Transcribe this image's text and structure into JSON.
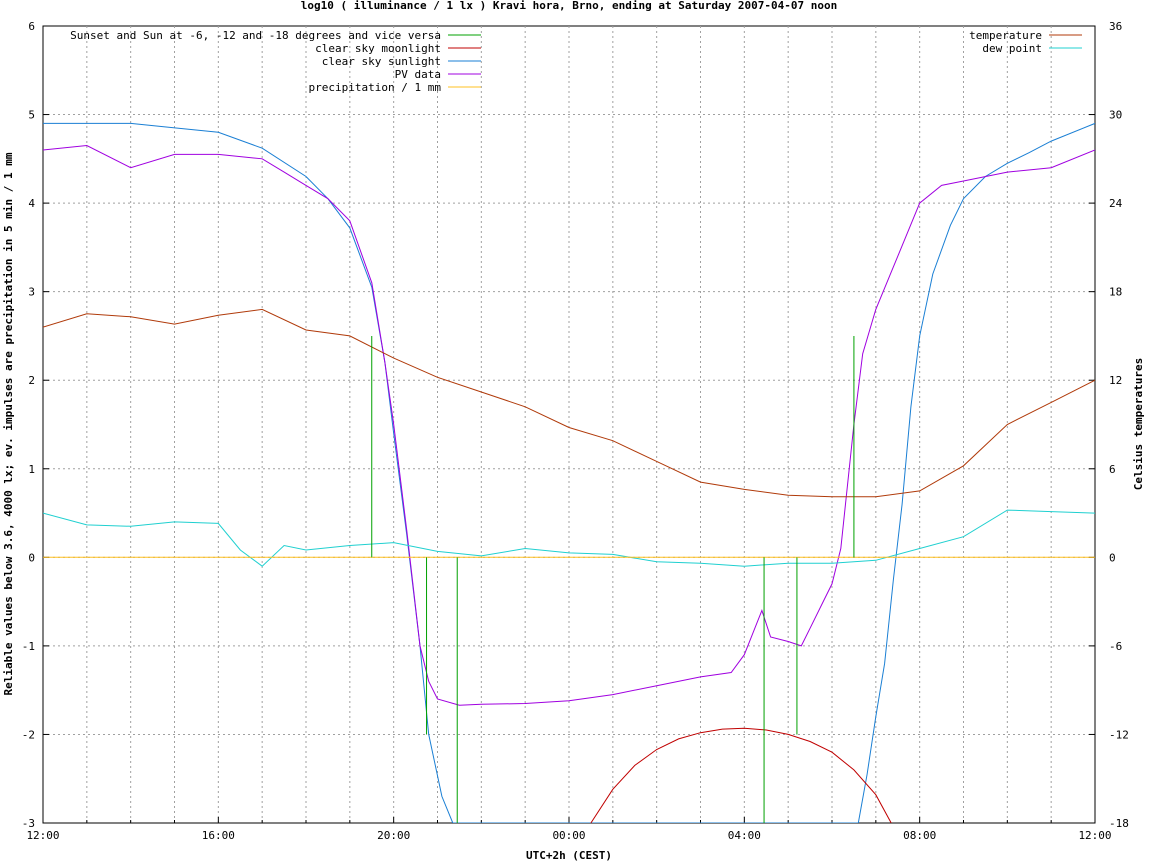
{
  "chart_data": {
    "type": "line",
    "title": "log10 ( illuminance / 1 lx ) Kravi hora, Brno, ending at Saturday 2007-04-07 noon",
    "xlabel": "UTC+2h (CEST)",
    "ylabel": "Reliable values below 3.6, 4000 lx; ev. impulses are precipitation in 5 min / 1 mm",
    "y2label": "Celsius temperatures",
    "xlim": [
      12,
      36
    ],
    "ylim": [
      -3,
      6
    ],
    "y2lim": [
      -18,
      36
    ],
    "x_ticks": [
      {
        "x": 12,
        "label": "12:00"
      },
      {
        "x": 16,
        "label": "16:00"
      },
      {
        "x": 20,
        "label": "20:00"
      },
      {
        "x": 24,
        "label": "00:00"
      },
      {
        "x": 28,
        "label": "04:00"
      },
      {
        "x": 32,
        "label": "08:00"
      },
      {
        "x": 36,
        "label": "12:00"
      }
    ],
    "y_ticks": [
      "-3",
      "-2",
      "-1",
      "0",
      "1",
      "2",
      "3",
      "4",
      "5",
      "6"
    ],
    "y2_ticks": [
      "-18",
      "-12",
      "-6",
      "0",
      "6",
      "12",
      "18",
      "24",
      "30",
      "36"
    ],
    "grid": true,
    "legend_left": [
      {
        "label": "Sunset and Sun at -6, -12 and -18 degrees and vice versa",
        "color": "#00a000"
      },
      {
        "label": "clear sky moonlight",
        "color": "#c00000"
      },
      {
        "label": "clear sky sunlight",
        "color": "#1a7fd4"
      },
      {
        "label": "PV data",
        "color": "#a000e0"
      },
      {
        "label": "precipitation / 1 mm",
        "color": "#ffc020"
      }
    ],
    "legend_right": [
      {
        "label": "temperature",
        "color": "#b03a0a"
      },
      {
        "label": "dew point",
        "color": "#20d0d0"
      }
    ],
    "series": [
      {
        "name": "clear sky sunlight",
        "axis": "left",
        "color": "#1a7fd4",
        "points": [
          [
            12,
            4.9
          ],
          [
            14,
            4.9
          ],
          [
            16,
            4.8
          ],
          [
            17,
            4.62
          ],
          [
            18,
            4.3
          ],
          [
            18.5,
            4.05
          ],
          [
            19,
            3.72
          ],
          [
            19.5,
            3.05
          ],
          [
            19.8,
            2.2
          ],
          [
            20,
            1.4
          ],
          [
            20.3,
            0.25
          ],
          [
            20.6,
            -1.0
          ],
          [
            20.8,
            -2.0
          ],
          [
            21.1,
            -2.7
          ],
          [
            21.35,
            -3.0
          ],
          [
            30.6,
            -3.0
          ],
          [
            30.8,
            -2.45
          ],
          [
            31,
            -1.8
          ],
          [
            31.2,
            -1.2
          ],
          [
            31.4,
            -0.25
          ],
          [
            31.6,
            0.6
          ],
          [
            31.8,
            1.7
          ],
          [
            32,
            2.5
          ],
          [
            32.3,
            3.2
          ],
          [
            32.7,
            3.75
          ],
          [
            33,
            4.05
          ],
          [
            33.5,
            4.3
          ],
          [
            34,
            4.45
          ],
          [
            34.5,
            4.57
          ],
          [
            35,
            4.7
          ],
          [
            36,
            4.9
          ]
        ]
      },
      {
        "name": "clear sky moonlight",
        "axis": "left",
        "color": "#c00000",
        "points": [
          [
            24.5,
            -3.0
          ],
          [
            25,
            -2.62
          ],
          [
            25.5,
            -2.35
          ],
          [
            26,
            -2.17
          ],
          [
            26.5,
            -2.05
          ],
          [
            27,
            -1.98
          ],
          [
            27.5,
            -1.94
          ],
          [
            28,
            -1.93
          ],
          [
            28.5,
            -1.95
          ],
          [
            29,
            -2.0
          ],
          [
            29.5,
            -2.08
          ],
          [
            30,
            -2.2
          ],
          [
            30.5,
            -2.4
          ],
          [
            31,
            -2.68
          ],
          [
            31.35,
            -3.0
          ]
        ]
      },
      {
        "name": "PV data",
        "axis": "left",
        "color": "#a000e0",
        "points": [
          [
            12,
            4.6
          ],
          [
            13,
            4.65
          ],
          [
            14,
            4.4
          ],
          [
            15,
            4.55
          ],
          [
            16,
            4.55
          ],
          [
            17,
            4.5
          ],
          [
            17.5,
            4.35
          ],
          [
            18,
            4.2
          ],
          [
            18.5,
            4.05
          ],
          [
            19,
            3.8
          ],
          [
            19.5,
            3.1
          ],
          [
            19.8,
            2.2
          ],
          [
            20,
            1.5
          ],
          [
            20.3,
            0.3
          ],
          [
            20.6,
            -1.0
          ],
          [
            20.8,
            -1.4
          ],
          [
            21,
            -1.6
          ],
          [
            21.5,
            -1.67
          ],
          [
            22,
            -1.66
          ],
          [
            23,
            -1.65
          ],
          [
            24,
            -1.62
          ],
          [
            25,
            -1.55
          ],
          [
            26,
            -1.45
          ],
          [
            27,
            -1.35
          ],
          [
            27.7,
            -1.3
          ],
          [
            28,
            -1.1
          ],
          [
            28.4,
            -0.6
          ],
          [
            28.6,
            -0.9
          ],
          [
            29,
            -0.95
          ],
          [
            29.3,
            -1.0
          ],
          [
            29.5,
            -0.8
          ],
          [
            29.8,
            -0.5
          ],
          [
            30,
            -0.3
          ],
          [
            30.2,
            0.1
          ],
          [
            30.5,
            1.5
          ],
          [
            30.7,
            2.3
          ],
          [
            31,
            2.8
          ],
          [
            31.5,
            3.4
          ],
          [
            32,
            4.0
          ],
          [
            32.5,
            4.2
          ],
          [
            33,
            4.25
          ],
          [
            34,
            4.35
          ],
          [
            35,
            4.4
          ],
          [
            36,
            4.6
          ]
        ]
      },
      {
        "name": "temperature",
        "axis": "right",
        "color": "#b03a0a",
        "points": [
          [
            12,
            15.6
          ],
          [
            13,
            16.5
          ],
          [
            14,
            16.3
          ],
          [
            15,
            15.8
          ],
          [
            16,
            16.4
          ],
          [
            17,
            16.8
          ],
          [
            18,
            15.4
          ],
          [
            19,
            15.0
          ],
          [
            20,
            13.5
          ],
          [
            21,
            12.2
          ],
          [
            22,
            11.2
          ],
          [
            23,
            10.2
          ],
          [
            24,
            8.8
          ],
          [
            25,
            7.9
          ],
          [
            26,
            6.5
          ],
          [
            27,
            5.1
          ],
          [
            28,
            4.6
          ],
          [
            29,
            4.2
          ],
          [
            30,
            4.1
          ],
          [
            31,
            4.1
          ],
          [
            32,
            4.5
          ],
          [
            33,
            6.2
          ],
          [
            34,
            9.0
          ],
          [
            35,
            10.5
          ],
          [
            36,
            12.0
          ]
        ]
      },
      {
        "name": "dew point",
        "axis": "right",
        "color": "#20d0d0",
        "points": [
          [
            12,
            3.0
          ],
          [
            13,
            2.2
          ],
          [
            14,
            2.1
          ],
          [
            15,
            2.4
          ],
          [
            16,
            2.3
          ],
          [
            16.5,
            0.5
          ],
          [
            17,
            -0.6
          ],
          [
            17.5,
            0.8
          ],
          [
            18,
            0.5
          ],
          [
            19,
            0.8
          ],
          [
            20,
            1.0
          ],
          [
            21,
            0.4
          ],
          [
            22,
            0.1
          ],
          [
            23,
            0.6
          ],
          [
            24,
            0.3
          ],
          [
            25,
            0.2
          ],
          [
            26,
            -0.3
          ],
          [
            27,
            -0.4
          ],
          [
            28,
            -0.6
          ],
          [
            29,
            -0.4
          ],
          [
            30,
            -0.4
          ],
          [
            31,
            -0.2
          ],
          [
            32,
            0.6
          ],
          [
            33,
            1.4
          ],
          [
            34,
            3.2
          ],
          [
            35,
            3.1
          ],
          [
            36,
            3.0
          ]
        ]
      },
      {
        "name": "precipitation / 1 mm",
        "axis": "left",
        "color": "#ffc020",
        "points": [
          [
            12,
            0
          ],
          [
            36,
            0
          ]
        ]
      }
    ],
    "sun_impulses": [
      {
        "x": 19.5,
        "y": 2.5
      },
      {
        "x": 20.1,
        "y": 0.0
      },
      {
        "x": 20.75,
        "y": -2.0
      },
      {
        "x": 21.45,
        "y": -3.0
      },
      {
        "x": 28.45,
        "y": -3.0
      },
      {
        "x": 29.2,
        "y": -2.0
      },
      {
        "x": 29.85,
        "y": 0.0
      },
      {
        "x": 30.5,
        "y": 2.5
      }
    ]
  }
}
